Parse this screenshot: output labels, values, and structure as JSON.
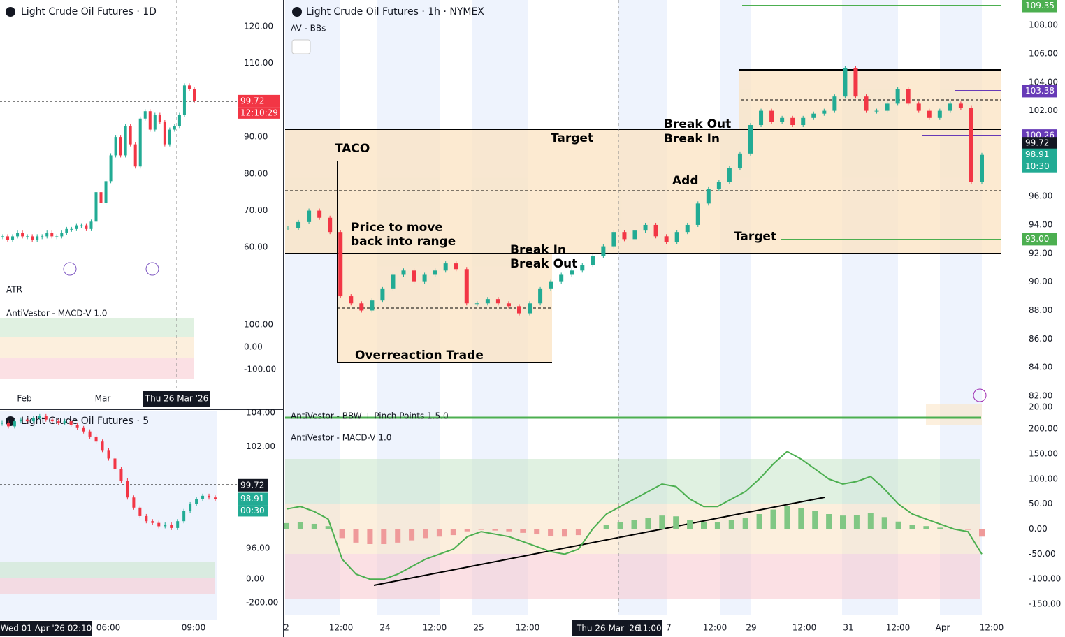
{
  "daily": {
    "title": "Light Crude Oil Futures · 1D",
    "atr_label": "ATR",
    "macd_label": "AntiVestor - MACD-V 1.0",
    "yticks": [
      {
        "value": 120,
        "label": "120.00"
      },
      {
        "value": 110,
        "label": "110.00"
      },
      {
        "value": 90,
        "label": "90.00"
      },
      {
        "value": 80,
        "label": "80.00"
      },
      {
        "value": 70,
        "label": "70.00"
      },
      {
        "value": 60,
        "label": "60.00"
      }
    ],
    "macd_ticks": [
      {
        "value": 100,
        "label": "100.00"
      },
      {
        "value": 0,
        "label": "0.00"
      },
      {
        "value": -100,
        "label": "-100.00"
      }
    ],
    "xlabels": [
      "Feb",
      "Mar"
    ],
    "cursor_date": "Thu 26 Mar '26",
    "price_tag": {
      "value": 99.72,
      "label": "99.72",
      "countdown": "12:10:29"
    },
    "closes": [
      63,
      62,
      63,
      64,
      63,
      63,
      62,
      63,
      63,
      64,
      63,
      63,
      64,
      65,
      65,
      66,
      66,
      65,
      67,
      75,
      72,
      78,
      85,
      90,
      85,
      93,
      88,
      82,
      95,
      97,
      92,
      96,
      94,
      88,
      92,
      93,
      96,
      104,
      103,
      99.72
    ]
  },
  "five": {
    "title": "Light Crude Oil Futures · 5",
    "yticks": [
      {
        "value": 104,
        "label": "104.00"
      },
      {
        "value": 102,
        "label": "102.00"
      },
      {
        "value": 96,
        "label": "96.00"
      }
    ],
    "macd_ticks": [
      {
        "value": 0,
        "label": "0.00"
      },
      {
        "value": -200,
        "label": "-200.00"
      }
    ],
    "xlabels": [
      "06:00",
      "09:00"
    ],
    "cursor_date": "Wed 01 Apr '26  02:10",
    "last_tag": {
      "value": 99.72,
      "label": "99.72"
    },
    "price_tag": {
      "value": 98.91,
      "label": "98.91",
      "countdown": "00:30"
    },
    "closes": [
      103.4,
      103.2,
      103.5,
      103.6,
      103.5,
      103.7,
      103.8,
      103.6,
      103.5,
      103.4,
      103.5,
      103.3,
      103.1,
      102.9,
      102.6,
      102.3,
      101.8,
      101.3,
      100.7,
      100,
      99,
      98.4,
      97.9,
      97.6,
      97.5,
      97.3,
      97.4,
      97.2,
      97.6,
      98.2,
      98.6,
      98.9,
      99.1,
      99,
      98.91
    ]
  },
  "main": {
    "title": "Light Crude Oil Futures · 1h · NYMEX",
    "indicator": "AV - BBs",
    "bbw_label": "AntiVestor - BBW + Pinch Points 1.5.0",
    "macd_label": "AntiVestor - MACD-V 1.0",
    "up_color": "#22ab94",
    "down_color": "#f23645",
    "yticks": [
      {
        "value": 108,
        "label": "108.00"
      },
      {
        "value": 106,
        "label": "106.00"
      },
      {
        "value": 104,
        "label": "104.00"
      },
      {
        "value": 102,
        "label": "102.00"
      },
      {
        "value": 96,
        "label": "96.00"
      },
      {
        "value": 94,
        "label": "94.00"
      },
      {
        "value": 92,
        "label": "92.00"
      },
      {
        "value": 90,
        "label": "90.00"
      },
      {
        "value": 88,
        "label": "88.00"
      },
      {
        "value": 86,
        "label": "86.00"
      },
      {
        "value": 84,
        "label": "84.00"
      },
      {
        "value": 82,
        "label": "82.00"
      }
    ],
    "bbw_tick": {
      "value": 20,
      "label": "20.00"
    },
    "macd_ticks": [
      {
        "value": 200,
        "label": "200.00"
      },
      {
        "value": 150,
        "label": "150.00"
      },
      {
        "value": 100,
        "label": "100.00"
      },
      {
        "value": 50,
        "label": "50.00"
      },
      {
        "value": 0,
        "label": "0.00"
      },
      {
        "value": -50,
        "label": "-50.00"
      },
      {
        "value": -100,
        "label": "-100.00"
      },
      {
        "value": -150,
        "label": "-150.00"
      }
    ],
    "xlabels": [
      "2",
      "12:00",
      "24",
      "12:00",
      "25",
      "12:00",
      "7",
      "12:00",
      "29",
      "12:00",
      "31",
      "12:00",
      "Apr",
      "12:00"
    ],
    "cursor_date": "Thu 26 Mar '26",
    "cursor_time": "11:00",
    "price_tags": [
      {
        "value": 109.35,
        "label": "109.35",
        "color": "#4caf50"
      },
      {
        "value": 103.38,
        "label": "103.38",
        "color": "#673ab7"
      },
      {
        "value": 100.26,
        "label": "100.26",
        "color": "#673ab7"
      },
      {
        "value": 99.72,
        "label": "99.72",
        "color": "#131722"
      },
      {
        "value": 98.91,
        "label": "98.91",
        "color": "#22ab94",
        "countdown": "10:30"
      },
      {
        "value": 93,
        "label": "93.00",
        "color": "#4caf50"
      }
    ],
    "annotations": [
      "TACO",
      "Target",
      "Break Out",
      "Break In",
      "Add",
      "Price to move",
      "back into range",
      "Break In",
      "Break Out",
      "Target",
      "Overreaction Trade"
    ],
    "closes": [
      93.8,
      94.2,
      95,
      94.5,
      93.5,
      89,
      88.5,
      88,
      88.7,
      89.5,
      90.5,
      90.8,
      90,
      90.5,
      90.8,
      91.3,
      90.9,
      88.5,
      88.5,
      88.8,
      88.5,
      88.3,
      87.8,
      88.5,
      89.5,
      90,
      90.5,
      90.8,
      91.2,
      91.8,
      92.5,
      93.5,
      93,
      93.6,
      94,
      93.2,
      92.8,
      93.5,
      94,
      95.5,
      96.5,
      97,
      98,
      99,
      101,
      102,
      101.2,
      101.5,
      101,
      101.5,
      101.8,
      102,
      103,
      105,
      103,
      102,
      102,
      102.5,
      103.5,
      102.5,
      102,
      101.5,
      102,
      102.5,
      102.2,
      97,
      98.91
    ],
    "macd": [
      40,
      45,
      35,
      20,
      -60,
      -90,
      -100,
      -100,
      -90,
      -75,
      -60,
      -50,
      -40,
      -15,
      -5,
      -10,
      -15,
      -25,
      -35,
      -45,
      -50,
      -40,
      0,
      30,
      45,
      60,
      75,
      90,
      85,
      60,
      45,
      45,
      60,
      75,
      100,
      130,
      155,
      140,
      120,
      100,
      90,
      95,
      105,
      80,
      50,
      30,
      20,
      10,
      0,
      -5,
      -50
    ]
  }
}
